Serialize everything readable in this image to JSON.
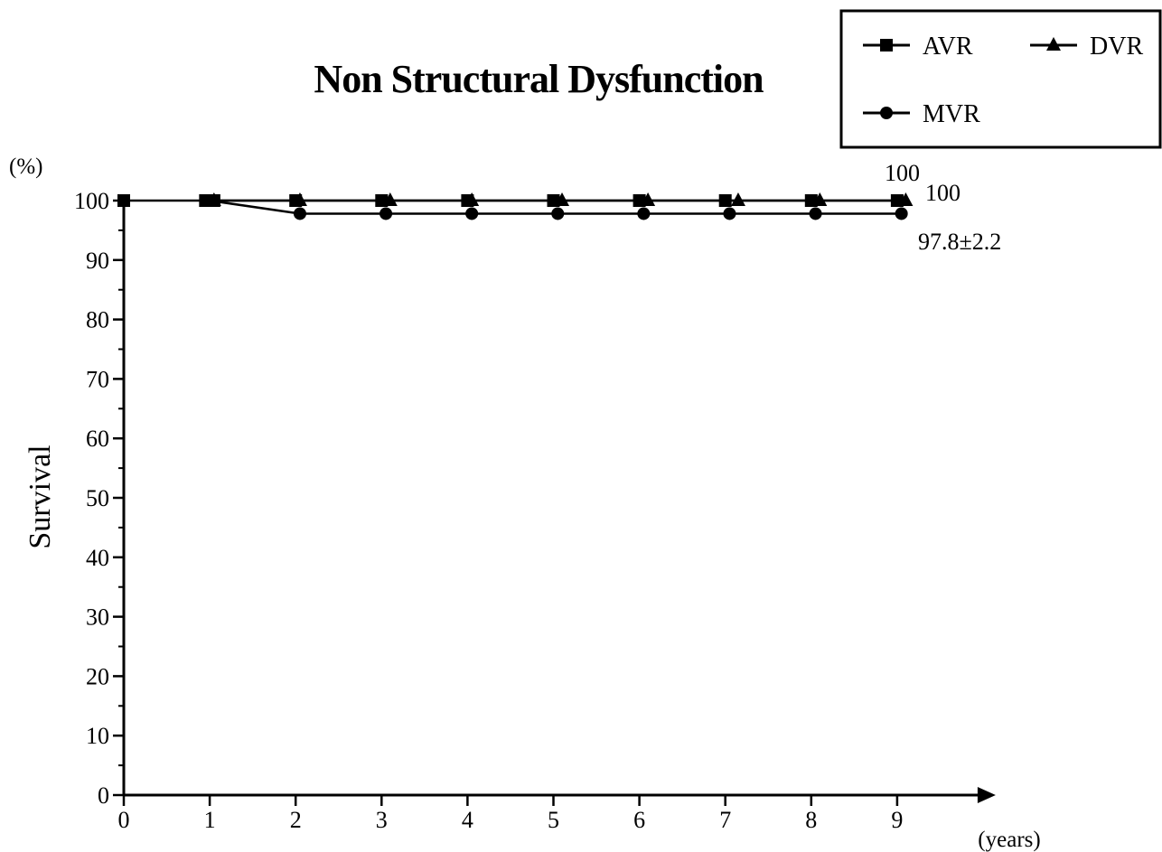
{
  "chart_data": {
    "type": "line",
    "title": "Non Structural Dysfunction",
    "xlabel": "",
    "ylabel": "Survival",
    "x_unit": "(years)",
    "y_unit": "(%)",
    "xlim": [
      0,
      9
    ],
    "ylim": [
      0,
      100
    ],
    "x_ticks": [
      0,
      1,
      2,
      3,
      4,
      5,
      6,
      7,
      8,
      9
    ],
    "y_ticks": [
      0,
      10,
      20,
      30,
      40,
      50,
      60,
      70,
      80,
      90,
      100
    ],
    "grid": false,
    "legend_position": "top-right",
    "series": [
      {
        "name": "AVR",
        "marker": "square",
        "x": [
          0,
          0.95,
          1,
          1.05,
          2,
          3,
          4,
          5,
          6,
          7,
          8,
          9
        ],
        "y": [
          100,
          100,
          100,
          100,
          100,
          100,
          100,
          100,
          100,
          100,
          100,
          100
        ]
      },
      {
        "name": "DVR",
        "marker": "triangle",
        "x": [
          1.05,
          2.05,
          3.1,
          4.05,
          5.1,
          6.1,
          7.15,
          8.1,
          9.1
        ],
        "y": [
          100,
          100,
          100,
          100,
          100,
          100,
          100,
          100,
          100
        ]
      },
      {
        "name": "MVR",
        "marker": "circle",
        "x": [
          1,
          2.05,
          3.05,
          4.05,
          5.05,
          6.05,
          7.05,
          8.05,
          9.05
        ],
        "y": [
          100,
          97.8,
          97.8,
          97.8,
          97.8,
          97.8,
          97.8,
          97.8,
          97.8
        ]
      }
    ],
    "annotations": [
      "100",
      "100",
      "97.8±2.2"
    ]
  }
}
